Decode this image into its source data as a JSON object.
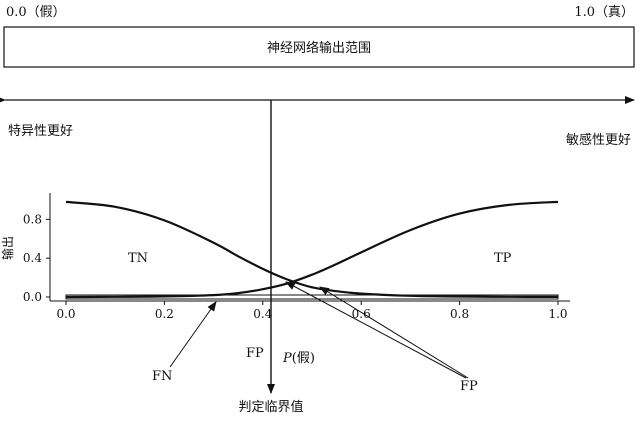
{
  "range": {
    "left_label": "0.0（假）",
    "right_label": "1.0（真）",
    "box_label": "神经网络输出范围"
  },
  "direction": {
    "left": "特异性更好",
    "right": "敏感性更好"
  },
  "chart_data": {
    "type": "line",
    "ylabel": "输出",
    "xlim": [
      0,
      1
    ],
    "ylim": [
      0,
      1
    ],
    "x_ticks": [
      "0.0",
      "0.2",
      "0.4",
      "0.6",
      "0.8",
      "1.0"
    ],
    "y_ticks": [
      "0.0",
      "0.4",
      "0.8"
    ],
    "threshold_x": 0.42,
    "series": [
      {
        "x": [
          0,
          0.1,
          0.2,
          0.3,
          0.35,
          0.4,
          0.45,
          0.5,
          0.55,
          0.6,
          0.7,
          0.8,
          0.9,
          1.0
        ],
        "y": [
          0.98,
          0.93,
          0.79,
          0.56,
          0.42,
          0.29,
          0.18,
          0.1,
          0.06,
          0.035,
          0.012,
          0.005,
          0.002,
          0.001
        ]
      },
      {
        "x": [
          0,
          0.1,
          0.2,
          0.3,
          0.35,
          0.4,
          0.45,
          0.5,
          0.55,
          0.6,
          0.7,
          0.8,
          0.9,
          1.0
        ],
        "y": [
          0.0,
          0.002,
          0.006,
          0.02,
          0.04,
          0.08,
          0.14,
          0.23,
          0.34,
          0.46,
          0.69,
          0.86,
          0.95,
          0.98
        ]
      }
    ],
    "region_labels": {
      "tn": "TN",
      "tp": "TP",
      "fp_left": "FP",
      "fn": "FN",
      "fp_right": "FP"
    },
    "p_label": {
      "italic": "P",
      "rest": "(假)"
    },
    "threshold_label": "判定临界值"
  }
}
